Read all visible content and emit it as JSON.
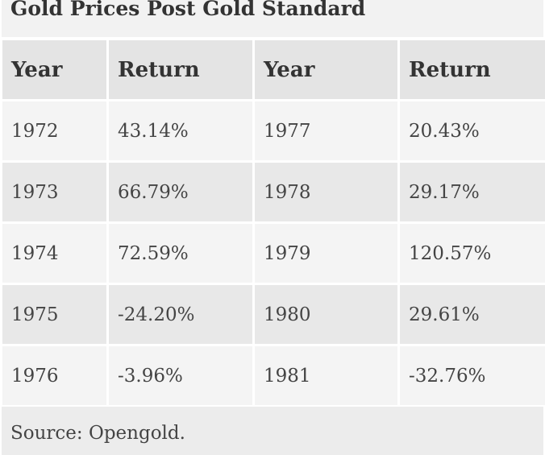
{
  "table": {
    "title": "Gold Prices Post Gold Standard",
    "headers": [
      "Year",
      "Return",
      "Year",
      "Return"
    ],
    "rows": [
      [
        "1972",
        "43.14%",
        "1977",
        "20.43%"
      ],
      [
        "1973",
        "66.79%",
        "1978",
        "29.17%"
      ],
      [
        "1974",
        "72.59%",
        "1979",
        "120.57%"
      ],
      [
        "1975",
        "-24.20%",
        "1980",
        "29.61%"
      ],
      [
        "1976",
        "-3.96%",
        "1981",
        "-32.76%"
      ]
    ],
    "source": "Source: Opengold."
  }
}
